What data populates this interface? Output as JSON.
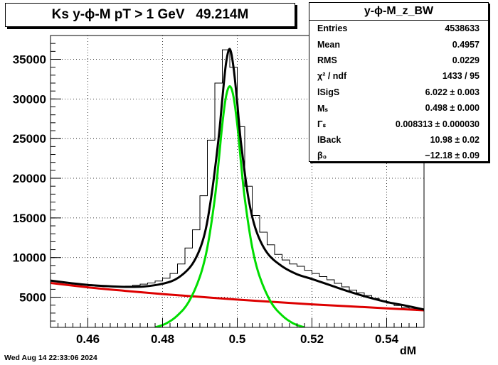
{
  "title": "Ks y-ϕ-M pT > 1 GeV   49.214M",
  "timestamp": "Wed Aug 14 22:33:06 2024",
  "stats": {
    "name": "y-ϕ-M_z_BW",
    "rows": [
      {
        "label": "Entries",
        "value": "4538633"
      },
      {
        "label": "Mean",
        "value": "0.4957"
      },
      {
        "label": "RMS",
        "value": "0.0229"
      },
      {
        "label": "χ² / ndf",
        "value": "1433 / 95"
      },
      {
        "label": "lSigS",
        "value": "6.022 ± 0.003"
      },
      {
        "label": "Mₛ",
        "value": "0.498 ± 0.000"
      },
      {
        "label": "Γₛ",
        "value": "0.008313 ± 0.000030"
      },
      {
        "label": "lBack",
        "value": "10.98 ± 0.02"
      },
      {
        "label": "β₀",
        "value": "−12.18 ± 0.09"
      }
    ]
  },
  "chart_data": {
    "type": "line",
    "xlabel": "dM",
    "ylabel": "",
    "xlim": [
      0.45,
      0.55
    ],
    "ylim": [
      1200,
      38000
    ],
    "grid": true,
    "x_ticks": [
      "0.46",
      "0.48",
      "0.5",
      "0.52",
      "0.54"
    ],
    "x_tick_values": [
      0.46,
      0.48,
      0.5,
      0.52,
      0.54
    ],
    "y_ticks": [
      "5000",
      "10000",
      "15000",
      "20000",
      "25000",
      "30000",
      "35000"
    ],
    "y_tick_values": [
      5000,
      10000,
      15000,
      20000,
      25000,
      30000,
      35000
    ],
    "colors": {
      "data": "#000000",
      "total": "#000000",
      "signal": "#00dd00",
      "background": "#dd0000"
    },
    "series": [
      {
        "key": "data",
        "style": "histogram",
        "x": [
          0.451,
          0.453,
          0.455,
          0.457,
          0.459,
          0.461,
          0.463,
          0.465,
          0.467,
          0.469,
          0.471,
          0.473,
          0.475,
          0.477,
          0.479,
          0.481,
          0.483,
          0.485,
          0.487,
          0.489,
          0.491,
          0.493,
          0.495,
          0.497,
          0.499,
          0.501,
          0.503,
          0.505,
          0.507,
          0.509,
          0.511,
          0.513,
          0.515,
          0.517,
          0.519,
          0.521,
          0.523,
          0.525,
          0.527,
          0.529,
          0.531,
          0.533,
          0.535,
          0.537,
          0.539,
          0.541,
          0.543,
          0.545,
          0.547,
          0.549
        ],
        "y": [
          7050,
          6900,
          6800,
          6650,
          6550,
          6450,
          6380,
          6330,
          6320,
          6340,
          6400,
          6520,
          6650,
          6800,
          7050,
          7400,
          8000,
          9200,
          11200,
          13500,
          17800,
          24800,
          32000,
          36200,
          34000,
          26500,
          19000,
          15300,
          13200,
          11600,
          10400,
          9700,
          9200,
          8900,
          8400,
          8000,
          7600,
          7200,
          6750,
          6300,
          5900,
          5550,
          5200,
          4850,
          4550,
          4250,
          3950,
          3700,
          3550,
          3300
        ]
      },
      {
        "key": "total",
        "style": "line",
        "x": [
          0.45,
          0.455,
          0.46,
          0.465,
          0.47,
          0.475,
          0.48,
          0.484,
          0.488,
          0.491,
          0.493,
          0.495,
          0.496,
          0.497,
          0.498,
          0.499,
          0.5,
          0.501,
          0.503,
          0.505,
          0.508,
          0.512,
          0.516,
          0.52,
          0.525,
          0.53,
          0.535,
          0.54,
          0.545,
          0.55
        ],
        "y": [
          7100,
          6800,
          6550,
          6400,
          6300,
          6350,
          6700,
          7400,
          9200,
          12500,
          17500,
          25000,
          30000,
          34500,
          36300,
          34000,
          29500,
          24500,
          17500,
          13500,
          10600,
          8900,
          7900,
          7300,
          6500,
          5700,
          5000,
          4400,
          3950,
          3450
        ]
      },
      {
        "key": "signal",
        "style": "line",
        "x": [
          0.478,
          0.481,
          0.484,
          0.487,
          0.49,
          0.492,
          0.494,
          0.495,
          0.496,
          0.497,
          0.498,
          0.499,
          0.5,
          0.501,
          0.502,
          0.504,
          0.506,
          0.509,
          0.512,
          0.515,
          0.518
        ],
        "y": [
          1200,
          1700,
          2700,
          4400,
          7600,
          11300,
          17500,
          22000,
          26800,
          30300,
          31600,
          30300,
          26800,
          22000,
          17500,
          11300,
          7600,
          4400,
          2700,
          1700,
          1200
        ]
      },
      {
        "key": "background",
        "style": "line",
        "x": [
          0.45,
          0.46,
          0.47,
          0.48,
          0.49,
          0.5,
          0.51,
          0.52,
          0.53,
          0.54,
          0.55
        ],
        "y": [
          6800,
          6250,
          5800,
          5400,
          5050,
          4700,
          4400,
          4100,
          3850,
          3600,
          3350
        ]
      }
    ]
  }
}
